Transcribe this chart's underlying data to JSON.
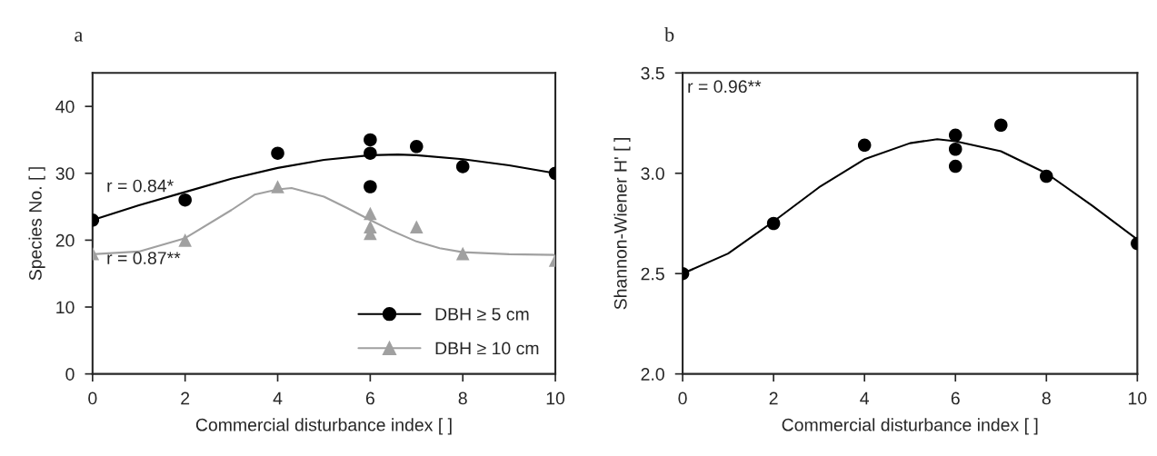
{
  "chart_data": [
    {
      "type": "scatter",
      "title": "a",
      "xlabel": "Commercial disturbance index [ ]",
      "ylabel": "Species No. [ ]",
      "xlim": [
        0,
        10
      ],
      "xticks": [
        0,
        2,
        4,
        6,
        8,
        10
      ],
      "ylim": [
        0,
        45
      ],
      "yticks": [
        0,
        10,
        20,
        30,
        40
      ],
      "grid": false,
      "legend": "bottom right",
      "series": [
        {
          "name": "DBH ≥ 5 cm",
          "marker": "circle",
          "color": "#000000",
          "x": [
            0,
            2,
            4,
            6,
            6,
            6,
            7,
            8,
            10
          ],
          "values": [
            23,
            26,
            33,
            35,
            33,
            28,
            34,
            31,
            30
          ]
        },
        {
          "name": "DBH ≥ 10 cm",
          "marker": "triangle",
          "color": "#a0a0a0",
          "x": [
            0,
            2,
            4,
            6,
            6,
            6,
            7,
            8,
            10
          ],
          "values": [
            18,
            20,
            28,
            24,
            22,
            21,
            22,
            18,
            17
          ]
        },
        {
          "type": "line",
          "marker": "none",
          "color": "#000000",
          "x": [
            0,
            1,
            2,
            3,
            4,
            5,
            6,
            6.6,
            7,
            8,
            9,
            10
          ],
          "values": [
            23,
            25.2,
            27.2,
            29.2,
            30.8,
            32,
            32.7,
            32.8,
            32.7,
            32.1,
            31.2,
            30
          ]
        },
        {
          "type": "line",
          "marker": "none",
          "color": "#a0a0a0",
          "x": [
            0,
            1,
            2,
            3,
            3.5,
            4,
            4.3,
            5,
            5.5,
            6,
            6.5,
            7,
            7.5,
            8,
            9,
            10
          ],
          "values": [
            17.9,
            18.3,
            20.3,
            24.5,
            26.8,
            27.6,
            27.8,
            26.5,
            24.8,
            23,
            21.3,
            19.8,
            18.8,
            18.2,
            17.9,
            17.8
          ]
        }
      ],
      "annotations": [
        "r = 0.84*",
        "r = 0.87**"
      ]
    },
    {
      "type": "scatter",
      "title": "b",
      "xlabel": "Commercial disturbance index [ ]",
      "ylabel": "Shannon-Wiener H' [ ]",
      "xlim": [
        0,
        10
      ],
      "xticks": [
        0,
        2,
        4,
        6,
        8,
        10
      ],
      "ylim": [
        2.0,
        3.5
      ],
      "yticks": [
        {
          "value": 2.0,
          "label": "2.0"
        },
        2.5,
        {
          "value": 3.0,
          "label": "3.0"
        },
        3.5
      ],
      "grid": false,
      "series": [
        {
          "marker": "circle",
          "color": "#000000",
          "x": [
            0,
            2,
            4,
            6,
            6,
            6,
            7,
            8,
            10
          ],
          "values": [
            2.5,
            2.75,
            3.14,
            3.19,
            3.12,
            3.035,
            3.24,
            2.985,
            2.65
          ]
        },
        {
          "type": "line",
          "marker": "none",
          "color": "#000000",
          "x": [
            0,
            1,
            2,
            3,
            4,
            5,
            5.6,
            6,
            7,
            8,
            9,
            10
          ],
          "values": [
            2.5,
            2.6,
            2.76,
            2.93,
            3.07,
            3.15,
            3.17,
            3.16,
            3.11,
            3.0,
            2.84,
            2.67
          ]
        }
      ],
      "annotations": [
        "r = 0.96**"
      ]
    }
  ]
}
